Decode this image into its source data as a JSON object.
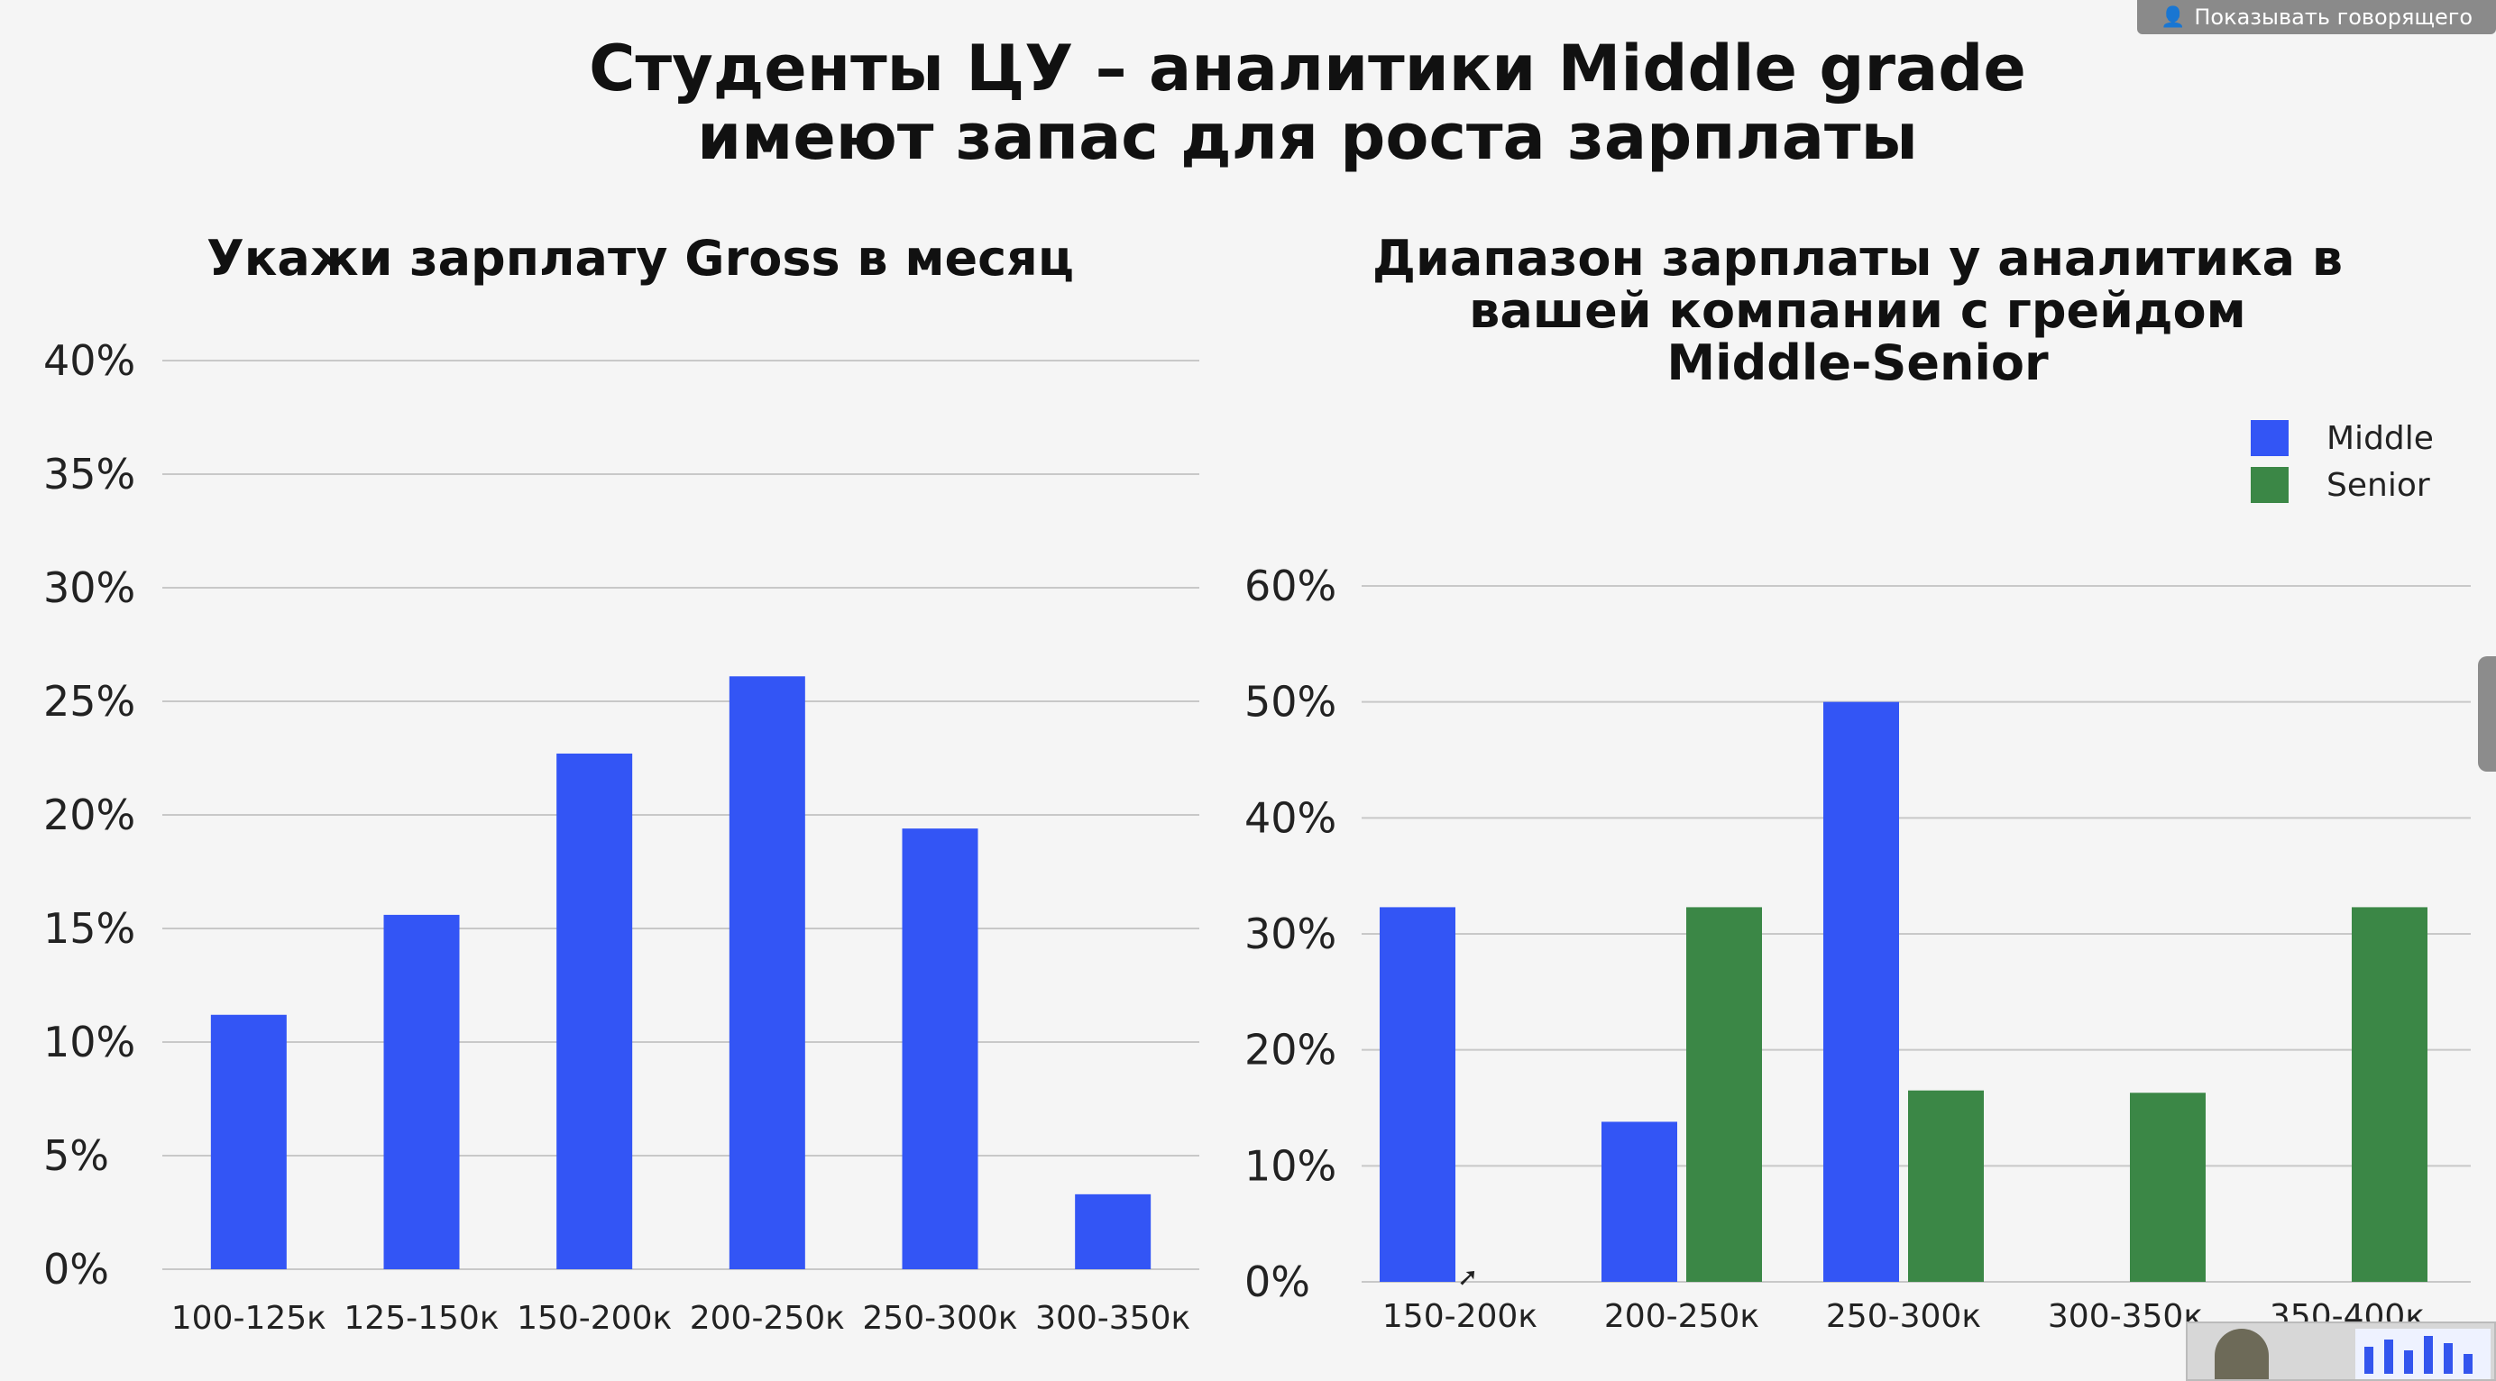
{
  "header": {
    "speaker_button_label": "Показывать говорящего",
    "speaker_icon": "person-speaker-icon"
  },
  "slide": {
    "title_line1": "Студенты ЦУ – аналитики Middle grade",
    "title_line2": "имеют запас для роста зарплаты"
  },
  "colors": {
    "middle": "#3355f5",
    "senior": "#3b8746",
    "grid": "#c8c8c8",
    "background": "#f5f5f5"
  },
  "chart_data": [
    {
      "type": "bar",
      "title": "Укажи зарплату Gross в месяц",
      "categories": [
        "100-125к",
        "125-150к",
        "150-200к",
        "200-250к",
        "250-300к",
        "300-350к"
      ],
      "values": [
        11.2,
        15.6,
        22.7,
        26.1,
        19.4,
        3.3
      ],
      "ylim": [
        0,
        40
      ],
      "yticks": [
        "0%",
        "5%",
        "10%",
        "15%",
        "20%",
        "25%",
        "30%",
        "35%",
        "40%"
      ],
      "grid": true
    },
    {
      "type": "bar",
      "title_line1": "Диапазон зарплаты у аналитика в",
      "title_line2": "вашей компании с грейдом",
      "title_line3": "Middle-Senior",
      "categories": [
        "150-200к",
        "200-250к",
        "250-300к",
        "300-350к",
        "350-400к"
      ],
      "series": [
        {
          "name": "Middle",
          "values": [
            32.3,
            13.8,
            50.0,
            0,
            0
          ]
        },
        {
          "name": "Senior",
          "values": [
            0,
            32.3,
            16.5,
            16.3,
            32.3
          ]
        }
      ],
      "ylim": [
        0,
        60
      ],
      "yticks": [
        "0%",
        "10%",
        "20%",
        "30%",
        "40%",
        "50%",
        "60%"
      ],
      "grid": true,
      "legend": "top-right"
    }
  ]
}
